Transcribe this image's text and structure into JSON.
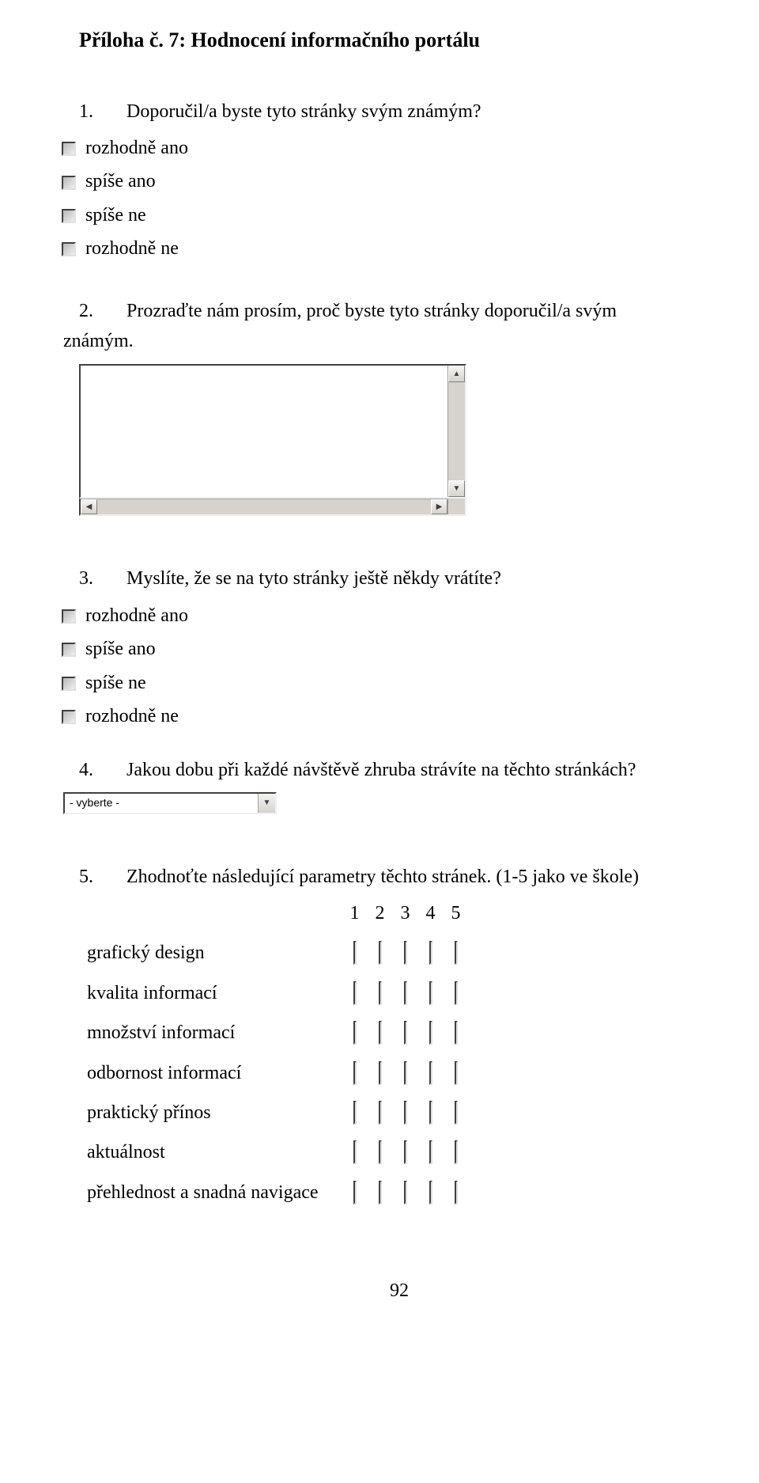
{
  "title": "Příloha č. 7: Hodnocení informačního portálu",
  "q1": {
    "num": "1.",
    "text": "Doporučil/a byste tyto stránky svým známým?",
    "options": [
      "rozhodně ano",
      "spíše ano",
      "spíše ne",
      "rozhodně ne"
    ]
  },
  "q2": {
    "num": "2.",
    "line1": "Prozraďte nám prosím, proč byste tyto stránky doporučil/a svým",
    "line2": "známým."
  },
  "q3": {
    "num": "3.",
    "text": "Myslíte, že se na tyto stránky ještě někdy vrátíte?",
    "options": [
      "rozhodně ano",
      "spíše ano",
      "spíše ne",
      "rozhodně ne"
    ]
  },
  "q4": {
    "num": "4.",
    "text": "Jakou dobu při každé návštěvě zhruba strávíte na těchto stránkách?",
    "select_placeholder": "- vyberte -"
  },
  "q5": {
    "num": "5.",
    "text": "Zhodnoťte následující parametry těchto stránek. (1-5 jako ve škole)",
    "columns": [
      "1",
      "2",
      "3",
      "4",
      "5"
    ],
    "rows": [
      "grafický design",
      "kvalita informací",
      "množství informací",
      "odbornost informací",
      "praktický přínos",
      "aktuálnost",
      "přehlednost a snadná navigace"
    ]
  },
  "page_number": "92",
  "colors": {
    "text": "#000000",
    "bg": "#ffffff",
    "control_bg": "#d6d3ce",
    "control_border_dark": "#404040",
    "control_border_light": "#f0f0f0"
  }
}
